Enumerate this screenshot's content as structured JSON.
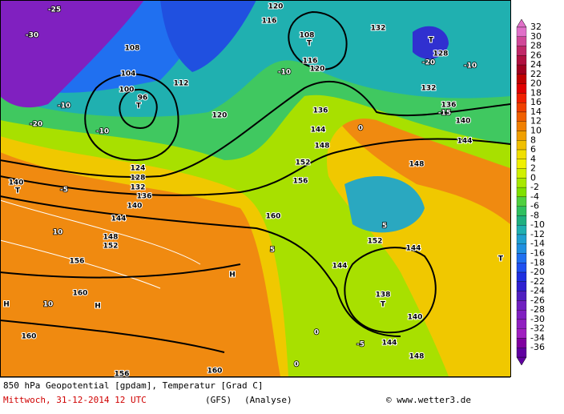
{
  "colorbar": {
    "levels": [
      32,
      30,
      28,
      26,
      24,
      22,
      20,
      18,
      16,
      14,
      12,
      10,
      8,
      6,
      4,
      2,
      0,
      -2,
      -4,
      -6,
      -8,
      -10,
      -12,
      -14,
      -16,
      -18,
      -20,
      -22,
      -24,
      -26,
      -28,
      -30,
      -32,
      -34,
      -36
    ],
    "colors": [
      "#e070c8",
      "#d04898",
      "#c02868",
      "#b01040",
      "#a00020",
      "#c00000",
      "#e00000",
      "#f02000",
      "#f04000",
      "#f06000",
      "#f08000",
      "#f0a000",
      "#f0c000",
      "#f0e000",
      "#f0f000",
      "#d0f000",
      "#a8e800",
      "#80e000",
      "#50d040",
      "#30c060",
      "#20b080",
      "#20b0b0",
      "#20a0d0",
      "#2090e0",
      "#2070f0",
      "#2050f0",
      "#2030e0",
      "#3020d0",
      "#5020c0",
      "#7020c0",
      "#8020c0",
      "#9020c0",
      "#a020c0",
      "#8000a0",
      "#6000a0"
    ]
  },
  "map_labels": [
    "108",
    "100",
    "96",
    "T",
    "104",
    "112",
    "120",
    "124",
    "128",
    "132",
    "136",
    "140",
    "144",
    "148",
    "152",
    "156",
    "160",
    "160",
    "156",
    "160",
    "H",
    "H",
    "H",
    "T",
    "140",
    "-10",
    "-10",
    "-20",
    "-30",
    "-25",
    "-5",
    "10",
    "10",
    "0",
    "0",
    "-5",
    "144",
    "144",
    "144",
    "148",
    "148",
    "144",
    "140",
    "136",
    "132",
    "128",
    "T",
    "-20",
    "-10",
    "-15",
    "T",
    "T",
    "138",
    "140",
    "120",
    "116",
    "108",
    "T",
    "116",
    "120",
    "132",
    "136",
    "144",
    "148",
    "152",
    "156",
    "160",
    "152",
    "5",
    "5",
    "-10",
    "0"
  ],
  "footer": {
    "line1": "850 hPa Geopotential [gpdam], Temperatur [Grad C]",
    "date": "Mittwoch, 31-12-2014  12 UTC",
    "model": "(GFS)",
    "mode": "(Analyse)",
    "credit": "© www.wetter3.de"
  }
}
